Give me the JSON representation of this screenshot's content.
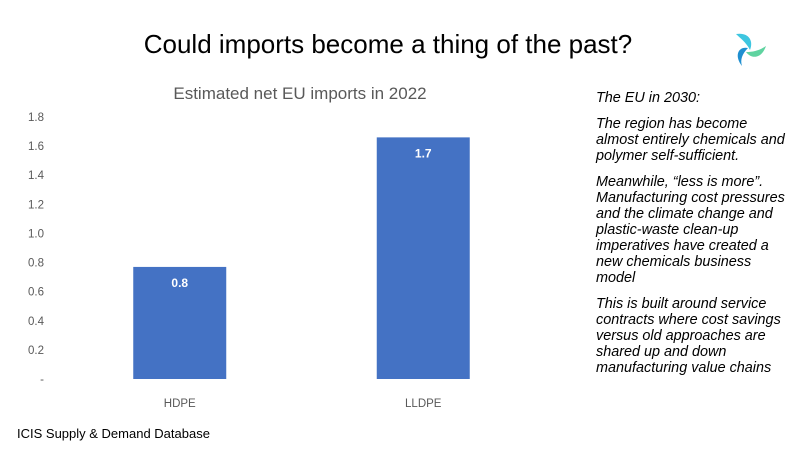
{
  "slide": {
    "title": "Could imports become a thing of the past?",
    "source": "ICIS Supply & Demand Database"
  },
  "side_panel": {
    "heading": "The EU in 2030:",
    "paragraphs": [
      "The region has become almost entirely chemicals and polymer self-sufficient.",
      "Meanwhile, “less is more”. Manufacturing cost pressures and the climate change and plastic-waste clean-up imperatives have created a new chemicals business model",
      "This is built around service contracts where cost savings versus old approaches are shared up and down manufacturing value chains"
    ]
  },
  "logo": {
    "icon": "icis-logo-icon",
    "colors": [
      "#3ec6e0",
      "#5fd3a0",
      "#1f8fd0"
    ]
  },
  "chart_data": {
    "type": "bar",
    "title": "Estimated net EU imports in 2022",
    "categories": [
      "HDPE",
      "LLDPE"
    ],
    "values": [
      0.77,
      1.66
    ],
    "data_labels": [
      "0.8",
      "1.7"
    ],
    "ylim": [
      0,
      1.8
    ],
    "yticks": [
      0,
      0.2,
      0.4,
      0.6,
      0.8,
      1.0,
      1.2,
      1.4,
      1.6,
      1.8
    ],
    "ytick_labels": [
      "-",
      "0.2",
      "0.4",
      "0.6",
      "0.8",
      "1.0",
      "1.2",
      "1.4",
      "1.6",
      "1.8"
    ],
    "bar_color": "#4472c4",
    "grid": false,
    "legend": false
  }
}
